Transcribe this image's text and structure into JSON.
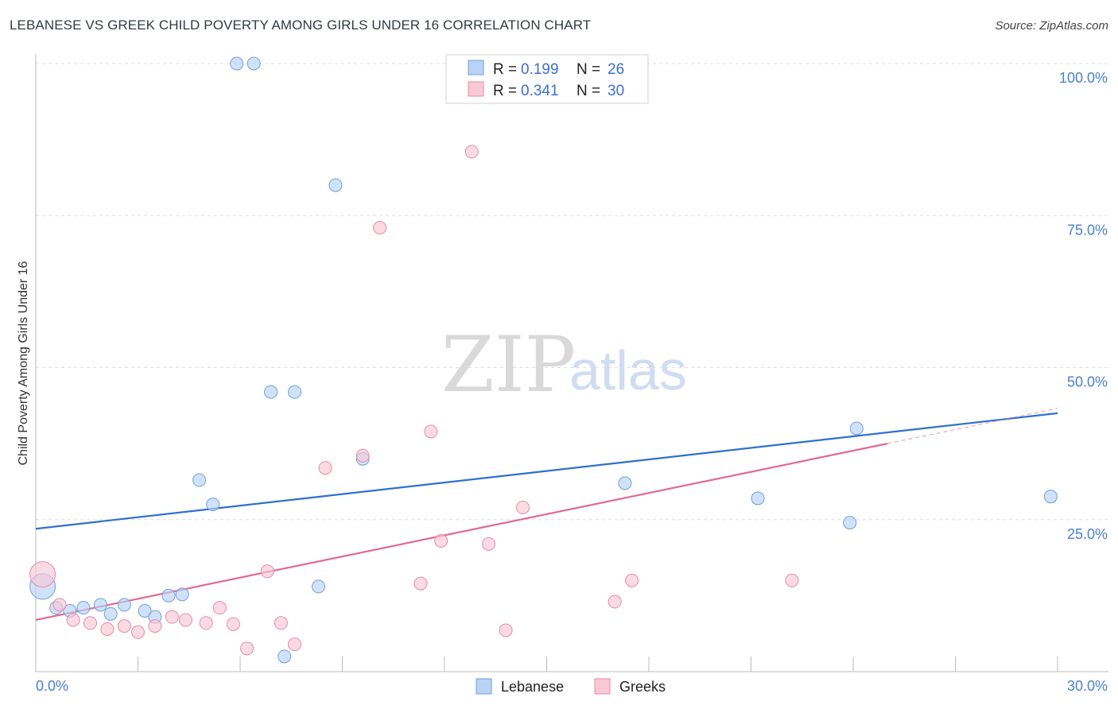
{
  "header": {
    "title": "LEBANESE VS GREEK CHILD POVERTY AMONG GIRLS UNDER 16 CORRELATION CHART",
    "source": "Source: ZipAtlas.com"
  },
  "watermark": {
    "part1": "ZIP",
    "part2": "atlas"
  },
  "colors": {
    "lebanese_fill": "#b9d3f5",
    "lebanese_stroke": "#6f9fe0",
    "lebanese_line": "#2f6fcf",
    "greeks_fill": "#f8c8d6",
    "greeks_stroke": "#e88aa6",
    "greeks_line": "#e06a92",
    "tick_text": "#4a7fd0",
    "grid": "#dddddd"
  },
  "legend": {
    "rows": [
      {
        "series": "Lebanese",
        "r_label": "R = ",
        "r_value": "0.199",
        "n_label": "N = ",
        "n_value": "26"
      },
      {
        "series": "Greeks",
        "r_label": "R = ",
        "r_value": "0.341",
        "n_label": "N = ",
        "n_value": "30"
      }
    ]
  },
  "chart_data": {
    "type": "scatter",
    "title": "LEBANESE VS GREEK CHILD POVERTY AMONG GIRLS UNDER 16 CORRELATION CHART",
    "xlabel": "",
    "ylabel": "Child Poverty Among Girls Under 16",
    "xlim": [
      0,
      30
    ],
    "ylim": [
      0,
      100
    ],
    "x_tick_labels": [
      "0.0%",
      "30.0%"
    ],
    "y_ticks": [
      25,
      50,
      75,
      100
    ],
    "y_tick_labels": [
      "25.0%",
      "50.0%",
      "75.0%",
      "100.0%"
    ],
    "grid": true,
    "legend_position": "bottom",
    "series": [
      {
        "name": "Lebanese",
        "points": [
          [
            0.2,
            14.0
          ],
          [
            0.6,
            10.5
          ],
          [
            1.0,
            10.0
          ],
          [
            1.4,
            10.5
          ],
          [
            1.9,
            11.0
          ],
          [
            2.2,
            9.5
          ],
          [
            2.6,
            11.0
          ],
          [
            3.2,
            10.0
          ],
          [
            3.5,
            9.0
          ],
          [
            3.9,
            12.5
          ],
          [
            4.3,
            12.7
          ],
          [
            4.8,
            31.5
          ],
          [
            5.2,
            27.5
          ],
          [
            5.9,
            100.0
          ],
          [
            6.4,
            100.0
          ],
          [
            6.9,
            46.0
          ],
          [
            7.3,
            2.5
          ],
          [
            7.6,
            46.0
          ],
          [
            8.3,
            14.0
          ],
          [
            8.8,
            80.0
          ],
          [
            9.6,
            35.0
          ],
          [
            17.3,
            31.0
          ],
          [
            21.2,
            28.5
          ],
          [
            23.9,
            24.5
          ],
          [
            24.1,
            40.0
          ],
          [
            29.8,
            28.8
          ]
        ],
        "trend": {
          "x": [
            0,
            30
          ],
          "y": [
            23.5,
            42.5
          ]
        }
      },
      {
        "name": "Greeks",
        "points": [
          [
            0.2,
            16.0
          ],
          [
            0.7,
            11.0
          ],
          [
            1.1,
            8.5
          ],
          [
            1.6,
            8.0
          ],
          [
            2.1,
            7.0
          ],
          [
            2.6,
            7.5
          ],
          [
            3.0,
            6.5
          ],
          [
            3.5,
            7.5
          ],
          [
            4.0,
            9.0
          ],
          [
            4.4,
            8.5
          ],
          [
            5.0,
            8.0
          ],
          [
            5.4,
            10.5
          ],
          [
            5.8,
            7.8
          ],
          [
            6.2,
            3.8
          ],
          [
            6.8,
            16.5
          ],
          [
            7.2,
            8.0
          ],
          [
            7.6,
            4.5
          ],
          [
            8.5,
            33.5
          ],
          [
            9.6,
            35.5
          ],
          [
            10.1,
            73.0
          ],
          [
            11.3,
            14.5
          ],
          [
            11.6,
            39.5
          ],
          [
            11.9,
            21.5
          ],
          [
            12.8,
            85.5
          ],
          [
            13.3,
            21.0
          ],
          [
            13.8,
            6.8
          ],
          [
            14.3,
            27.0
          ],
          [
            17.0,
            11.5
          ],
          [
            17.5,
            15.0
          ],
          [
            22.2,
            15.0
          ]
        ],
        "trend": {
          "x": [
            0,
            25
          ],
          "y": [
            8.5,
            37.5
          ]
        },
        "trend_dashed": {
          "x": [
            25,
            30
          ],
          "y": [
            37.5,
            43.3
          ]
        }
      }
    ]
  }
}
